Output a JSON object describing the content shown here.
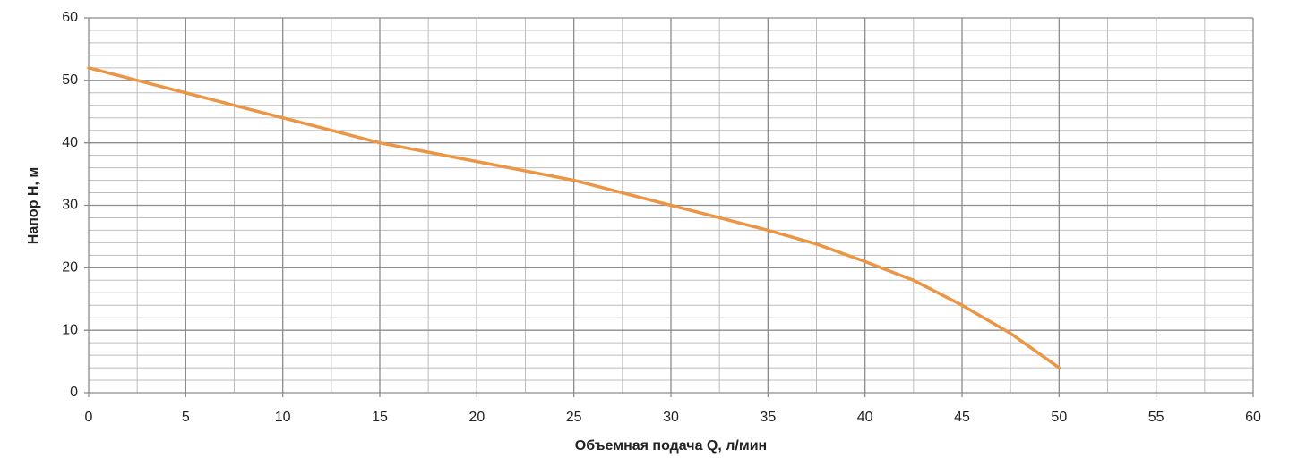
{
  "chart_data": {
    "type": "line",
    "x_label": "Объемная подача Q, л/мин",
    "y_label": "Напор H, м",
    "x": [
      0,
      2.5,
      5,
      7.5,
      10,
      12.5,
      15,
      17.5,
      20,
      22.5,
      25,
      27.5,
      30,
      32.5,
      35,
      37.5,
      40,
      42.5,
      45,
      47.5,
      50
    ],
    "series": [
      {
        "color": "#ec9544",
        "values": [
          52,
          50,
          48,
          46,
          44,
          42,
          40,
          38.5,
          37,
          35.5,
          34,
          32,
          30,
          28,
          26,
          23.8,
          21,
          18,
          14,
          9.5,
          4
        ]
      }
    ],
    "xlim": [
      0,
      60
    ],
    "xticks": [
      0,
      5,
      10,
      15,
      20,
      25,
      30,
      35,
      40,
      45,
      50,
      55,
      60
    ],
    "ylim": [
      0,
      60
    ],
    "yticks": [
      0,
      10,
      20,
      30,
      40,
      50,
      60
    ],
    "grid": true
  }
}
